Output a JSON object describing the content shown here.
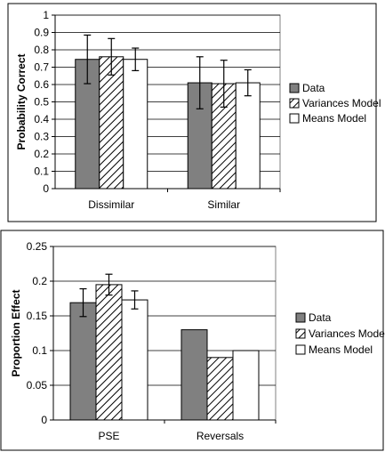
{
  "colors": {
    "data": "#808080",
    "variances": "#ffffff",
    "means": "#ffffff",
    "frame": "#000000"
  },
  "chart_data": [
    {
      "type": "bar",
      "categories": [
        "Dissimilar",
        "Similar"
      ],
      "ylabel": "Probability Correct",
      "xlabel": "",
      "ylim": [
        0,
        1
      ],
      "yticks": [
        "0",
        "0.1",
        "0.2",
        "0.3",
        "0.4",
        "0.5",
        "0.6",
        "0.7",
        "0.8",
        "0.9",
        "1"
      ],
      "grid": true,
      "legend_position": "right",
      "series": [
        {
          "name": "Data",
          "pattern": "solid-gray",
          "values": [
            0.745,
            0.61
          ],
          "error": [
            0.14,
            0.15
          ]
        },
        {
          "name": "Variances Model",
          "pattern": "hatched",
          "values": [
            0.76,
            0.605
          ],
          "error": [
            0.105,
            0.135
          ]
        },
        {
          "name": "Means Model",
          "pattern": "white",
          "values": [
            0.745,
            0.61
          ],
          "error": [
            0.065,
            0.075
          ]
        }
      ]
    },
    {
      "type": "bar",
      "categories": [
        "PSE",
        "Reversals"
      ],
      "ylabel": "Proportion Effect",
      "xlabel": "",
      "ylim": [
        0,
        0.25
      ],
      "yticks": [
        "0",
        "0.05",
        "0.1",
        "0.15",
        "0.2",
        "0.25"
      ],
      "grid": true,
      "legend_position": "right",
      "series": [
        {
          "name": "Data",
          "pattern": "solid-gray",
          "values": [
            0.169,
            0.13
          ],
          "error": [
            0.02,
            null
          ]
        },
        {
          "name": "Variances Model",
          "pattern": "hatched",
          "values": [
            0.195,
            0.09
          ],
          "error": [
            0.015,
            null
          ]
        },
        {
          "name": "Means Model",
          "pattern": "white",
          "values": [
            0.173,
            0.1
          ],
          "error": [
            0.013,
            null
          ]
        }
      ]
    }
  ]
}
